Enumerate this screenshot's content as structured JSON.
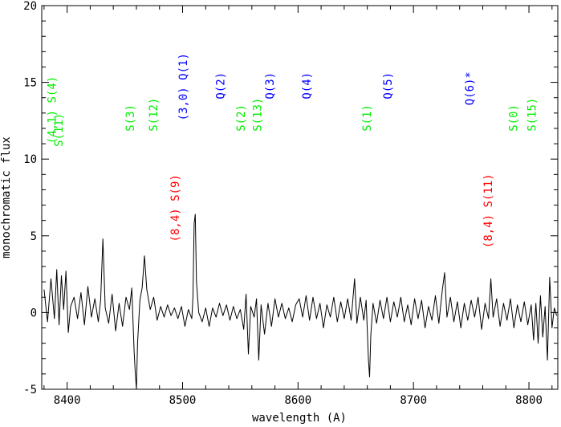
{
  "chart_data": {
    "type": "line",
    "title": "",
    "xlabel": "wavelength (A)",
    "ylabel": "monochromatic flux",
    "xlim": [
      8378,
      8825
    ],
    "ylim": [
      -5,
      20
    ],
    "x_ticks": [
      8400,
      8500,
      8600,
      8700,
      8800
    ],
    "x_tick_labels": [
      "8400",
      "8500",
      "8600",
      "8700",
      "8800"
    ],
    "y_ticks": [
      -5,
      0,
      5,
      10,
      15,
      20
    ],
    "y_tick_labels": [
      "-5",
      "0",
      "5",
      "10",
      "15",
      "20"
    ],
    "grid": false,
    "series": [
      {
        "color": "#000000",
        "points": [
          [
            8380,
            1.5
          ],
          [
            8383,
            -0.6
          ],
          [
            8386,
            2.2
          ],
          [
            8389,
            -0.4
          ],
          [
            8391,
            2.8
          ],
          [
            8393,
            -0.8
          ],
          [
            8395,
            2.4
          ],
          [
            8397,
            0.2
          ],
          [
            8399,
            2.7
          ],
          [
            8401,
            -1.3
          ],
          [
            8403,
            0.4
          ],
          [
            8406,
            1.0
          ],
          [
            8409,
            -0.4
          ],
          [
            8412,
            1.3
          ],
          [
            8415,
            -0.8
          ],
          [
            8418,
            1.7
          ],
          [
            8421,
            -0.3
          ],
          [
            8424,
            0.9
          ],
          [
            8427,
            -0.6
          ],
          [
            8429,
            0.8
          ],
          [
            8431,
            4.8
          ],
          [
            8433,
            0.3
          ],
          [
            8436,
            -0.7
          ],
          [
            8439,
            1.2
          ],
          [
            8442,
            -1.2
          ],
          [
            8445,
            0.6
          ],
          [
            8448,
            -0.9
          ],
          [
            8451,
            1.0
          ],
          [
            8454,
            0.2
          ],
          [
            8456,
            1.6
          ],
          [
            8458,
            -2.5
          ],
          [
            8459,
            -3.9
          ],
          [
            8460,
            -5.0
          ],
          [
            8461,
            -2.0
          ],
          [
            8463,
            0.8
          ],
          [
            8465,
            1.6
          ],
          [
            8467,
            3.7
          ],
          [
            8469,
            1.5
          ],
          [
            8472,
            0.2
          ],
          [
            8475,
            1.0
          ],
          [
            8478,
            -0.5
          ],
          [
            8481,
            0.4
          ],
          [
            8484,
            -0.3
          ],
          [
            8487,
            0.5
          ],
          [
            8490,
            -0.2
          ],
          [
            8493,
            0.3
          ],
          [
            8496,
            -0.4
          ],
          [
            8499,
            0.4
          ],
          [
            8502,
            -0.9
          ],
          [
            8505,
            0.2
          ],
          [
            8508,
            -0.4
          ],
          [
            8509,
            1.0
          ],
          [
            8510,
            5.8
          ],
          [
            8511,
            6.4
          ],
          [
            8512,
            2.0
          ],
          [
            8514,
            0.0
          ],
          [
            8517,
            -0.6
          ],
          [
            8520,
            0.3
          ],
          [
            8523,
            -0.9
          ],
          [
            8526,
            0.3
          ],
          [
            8529,
            -0.3
          ],
          [
            8532,
            0.6
          ],
          [
            8535,
            -0.2
          ],
          [
            8538,
            0.5
          ],
          [
            8541,
            -0.5
          ],
          [
            8544,
            0.4
          ],
          [
            8547,
            -0.4
          ],
          [
            8550,
            0.2
          ],
          [
            8553,
            -1.1
          ],
          [
            8555,
            1.2
          ],
          [
            8557,
            -2.7
          ],
          [
            8559,
            0.4
          ],
          [
            8562,
            -0.3
          ],
          [
            8564,
            0.9
          ],
          [
            8566,
            -3.1
          ],
          [
            8568,
            0.5
          ],
          [
            8571,
            -1.4
          ],
          [
            8574,
            0.6
          ],
          [
            8577,
            -0.9
          ],
          [
            8580,
            0.9
          ],
          [
            8583,
            -0.3
          ],
          [
            8586,
            0.6
          ],
          [
            8589,
            -0.4
          ],
          [
            8592,
            0.3
          ],
          [
            8595,
            -0.6
          ],
          [
            8598,
            0.5
          ],
          [
            8601,
            0.9
          ],
          [
            8604,
            -0.3
          ],
          [
            8607,
            1.1
          ],
          [
            8610,
            -0.5
          ],
          [
            8613,
            1.0
          ],
          [
            8616,
            -0.4
          ],
          [
            8619,
            0.6
          ],
          [
            8622,
            -1.0
          ],
          [
            8625,
            0.5
          ],
          [
            8628,
            -0.3
          ],
          [
            8631,
            1.0
          ],
          [
            8634,
            -0.6
          ],
          [
            8637,
            0.7
          ],
          [
            8640,
            -0.4
          ],
          [
            8643,
            0.9
          ],
          [
            8646,
            -0.5
          ],
          [
            8649,
            2.2
          ],
          [
            8651,
            -0.7
          ],
          [
            8654,
            1.0
          ],
          [
            8657,
            -0.5
          ],
          [
            8659,
            0.8
          ],
          [
            8661,
            -3.1
          ],
          [
            8662,
            -4.2
          ],
          [
            8663,
            -1.5
          ],
          [
            8665,
            0.6
          ],
          [
            8668,
            -0.7
          ],
          [
            8671,
            0.8
          ],
          [
            8674,
            -0.4
          ],
          [
            8677,
            1.0
          ],
          [
            8680,
            -0.6
          ],
          [
            8683,
            0.7
          ],
          [
            8686,
            -0.3
          ],
          [
            8689,
            1.0
          ],
          [
            8692,
            -0.6
          ],
          [
            8695,
            0.5
          ],
          [
            8698,
            -0.8
          ],
          [
            8701,
            0.9
          ],
          [
            8704,
            -0.4
          ],
          [
            8707,
            0.8
          ],
          [
            8710,
            -1.0
          ],
          [
            8713,
            0.4
          ],
          [
            8716,
            -0.5
          ],
          [
            8719,
            1.1
          ],
          [
            8722,
            -0.7
          ],
          [
            8725,
            1.5
          ],
          [
            8727,
            2.6
          ],
          [
            8729,
            -0.3
          ],
          [
            8732,
            1.0
          ],
          [
            8735,
            -0.6
          ],
          [
            8738,
            0.7
          ],
          [
            8741,
            -1.0
          ],
          [
            8744,
            0.6
          ],
          [
            8747,
            -0.5
          ],
          [
            8750,
            0.8
          ],
          [
            8753,
            -0.3
          ],
          [
            8756,
            1.0
          ],
          [
            8759,
            -1.1
          ],
          [
            8762,
            0.6
          ],
          [
            8765,
            -0.4
          ],
          [
            8767,
            2.2
          ],
          [
            8769,
            -0.3
          ],
          [
            8772,
            0.9
          ],
          [
            8775,
            -0.9
          ],
          [
            8778,
            0.6
          ],
          [
            8781,
            -0.5
          ],
          [
            8784,
            0.9
          ],
          [
            8787,
            -1.0
          ],
          [
            8790,
            0.5
          ],
          [
            8793,
            -0.6
          ],
          [
            8796,
            0.7
          ],
          [
            8799,
            -0.8
          ],
          [
            8802,
            0.5
          ],
          [
            8804,
            -1.8
          ],
          [
            8806,
            0.6
          ],
          [
            8808,
            -2.0
          ],
          [
            8810,
            1.1
          ],
          [
            8812,
            -1.6
          ],
          [
            8814,
            0.4
          ],
          [
            8816,
            -3.1
          ],
          [
            8818,
            2.3
          ],
          [
            8820,
            -1.0
          ],
          [
            8822,
            0.3
          ],
          [
            8824,
            -0.2
          ]
        ]
      }
    ],
    "annotations": [
      {
        "text": "(4,1) S(4)",
        "x": 8390,
        "y": 11.0,
        "color": "#00ee00"
      },
      {
        "text": "S(11)",
        "x": 8396,
        "y": 10.8,
        "color": "#00ee00"
      },
      {
        "text": "S(3)",
        "x": 8458,
        "y": 11.8,
        "color": "#00ee00"
      },
      {
        "text": "S(12)",
        "x": 8478,
        "y": 11.8,
        "color": "#00ee00"
      },
      {
        "text": "(3,0) Q(1)",
        "x": 8504,
        "y": 12.5,
        "color": "#0000ff"
      },
      {
        "text": "Q(2)",
        "x": 8536,
        "y": 13.9,
        "color": "#0000ff"
      },
      {
        "text": "S(2)",
        "x": 8554,
        "y": 11.8,
        "color": "#00ee00"
      },
      {
        "text": "S(13)",
        "x": 8568,
        "y": 11.8,
        "color": "#00ee00"
      },
      {
        "text": "Q(3)",
        "x": 8579,
        "y": 13.9,
        "color": "#0000ff"
      },
      {
        "text": "Q(4)",
        "x": 8611,
        "y": 13.9,
        "color": "#0000ff"
      },
      {
        "text": "S(1)",
        "x": 8663,
        "y": 11.8,
        "color": "#00ee00"
      },
      {
        "text": "Q(5)",
        "x": 8681,
        "y": 13.9,
        "color": "#0000ff"
      },
      {
        "text": "Q(6)*",
        "x": 8752,
        "y": 13.5,
        "color": "#0000ff"
      },
      {
        "text": "S(0)",
        "x": 8790,
        "y": 11.8,
        "color": "#00ee00"
      },
      {
        "text": "S(15)",
        "x": 8806,
        "y": 11.8,
        "color": "#00ee00"
      },
      {
        "text": "(8,4) S(9)",
        "x": 8497,
        "y": 4.6,
        "color": "#ff0000"
      },
      {
        "text": "(8,4) S(11)",
        "x": 8768,
        "y": 4.2,
        "color": "#ff0000"
      }
    ]
  }
}
